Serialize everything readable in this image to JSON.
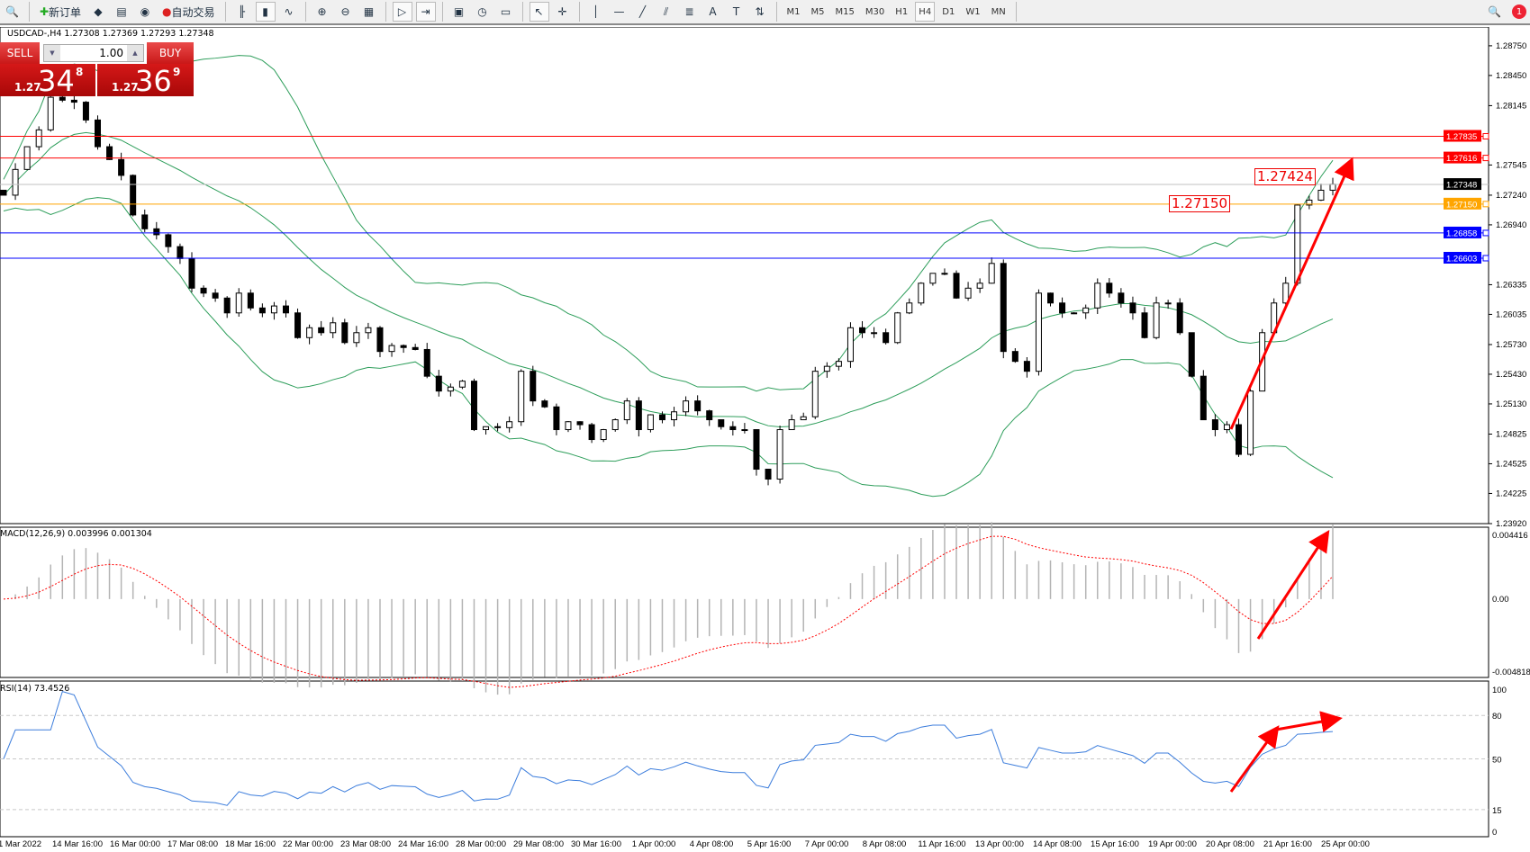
{
  "toolbar": {
    "new_order": "新订单",
    "auto_trading": "自动交易",
    "icons": [
      "search-icon",
      "new-order-icon",
      "history-icon",
      "market-watch-icon",
      "signals-icon",
      "auto-trading-icon",
      "bar-chart-icon",
      "candle-chart-icon",
      "line-chart-icon",
      "zoom-in-icon",
      "zoom-out-icon",
      "tile-windows-icon",
      "autoscroll-icon",
      "chart-shift-icon",
      "indicators-icon",
      "periods-icon",
      "templates-icon",
      "cursor-icon",
      "crosshair-icon",
      "vertical-line-icon",
      "horizontal-line-icon",
      "trendline-icon",
      "equidistant-channel-icon",
      "fibonacci-icon",
      "text-icon",
      "text-label-icon",
      "arrows-icon"
    ],
    "timeframes": [
      "M1",
      "M5",
      "M15",
      "M30",
      "H1",
      "H4",
      "D1",
      "W1",
      "MN"
    ],
    "active_timeframe": "H4",
    "notification_count": "1"
  },
  "symbol_info": "USDCAD-,H4  1.27308 1.27369 1.27293 1.27348",
  "one_click": {
    "sell": "SELL",
    "buy": "BUY",
    "lots": "1.00",
    "sell_price": {
      "small": "1.27",
      "big": "34",
      "pip": "8"
    },
    "buy_price": {
      "small": "1.27",
      "big": "36",
      "pip": "9"
    }
  },
  "price_labels": {
    "high_label": "1.27424",
    "mid_label": "1.27150"
  },
  "macd_label": "MACD(12,26,9) 0.003996 0.001304",
  "rsi_label": "RSI(14) 73.4526",
  "chart_data": {
    "type": "candlestick",
    "symbol": "USDCAD-",
    "timeframe": "H4",
    "price_axis": {
      "ticks": [
        "1.28750",
        "1.28450",
        "1.28145",
        "1.27545",
        "1.27240",
        "1.26940",
        "1.26335",
        "1.26035",
        "1.25730",
        "1.25430",
        "1.25130",
        "1.24825",
        "1.24525",
        "1.24225",
        "1.23920"
      ],
      "range": [
        1.2392,
        1.2894
      ]
    },
    "hlines": [
      {
        "price": "1.27835",
        "color": "#ff0000"
      },
      {
        "price": "1.27616",
        "color": "#ff0000"
      },
      {
        "price": "1.27348",
        "color": "#000000",
        "bid": true
      },
      {
        "price": "1.27150",
        "color": "#ffa500"
      },
      {
        "price": "1.26858",
        "color": "#0000ff"
      },
      {
        "price": "1.26603",
        "color": "#0000ff"
      }
    ],
    "close": [
      1.2724,
      1.275,
      1.2773,
      1.279,
      1.2823,
      1.282,
      1.2818,
      1.28,
      1.2773,
      1.276,
      1.2744,
      1.2704,
      1.269,
      1.2684,
      1.2672,
      1.266,
      1.263,
      1.2625,
      1.262,
      1.2605,
      1.2625,
      1.261,
      1.2605,
      1.2612,
      1.2605,
      1.258,
      1.259,
      1.2585,
      1.2595,
      1.2575,
      1.2585,
      1.259,
      1.2566,
      1.2572,
      1.257,
      1.2568,
      1.2541,
      1.2526,
      1.253,
      1.2536,
      1.2487,
      1.249,
      1.2489,
      1.2495,
      1.2546,
      1.2516,
      1.251,
      1.2487,
      1.2495,
      1.2492,
      1.2477,
      1.2487,
      1.2497,
      1.2516,
      1.2487,
      1.2502,
      1.2497,
      1.2505,
      1.2516,
      1.2506,
      1.2497,
      1.249,
      1.2487,
      1.2487,
      1.2447,
      1.2437,
      1.2487,
      1.2497,
      1.25,
      1.2546,
      1.2551,
      1.2556,
      1.259,
      1.2585,
      1.2585,
      1.2575,
      1.2605,
      1.2615,
      1.2635,
      1.2645,
      1.2645,
      1.262,
      1.263,
      1.2635,
      1.2655,
      1.2566,
      1.2556,
      1.2546,
      1.2625,
      1.2615,
      1.2605,
      1.2605,
      1.261,
      1.2635,
      1.2625,
      1.2615,
      1.2605,
      1.258,
      1.2615,
      1.2615,
      1.2585,
      1.2541,
      1.2497,
      1.2487,
      1.2492,
      1.2462,
      1.2526,
      1.2585,
      1.2615,
      1.2635,
      1.2714,
      1.2719,
      1.2729,
      1.2735
    ],
    "macd": {
      "params": "12,26,9",
      "axis": [
        "0.004416",
        "0.00",
        "-0.004818"
      ],
      "range": [
        -0.004818,
        0.004416
      ]
    },
    "rsi": {
      "period": 14,
      "levels": [
        80,
        50,
        15
      ],
      "axis": [
        "100",
        "80",
        "50",
        "15",
        "0"
      ],
      "range": [
        0,
        100
      ]
    },
    "time_labels": [
      "1 Mar 2022",
      "14 Mar 16:00",
      "16 Mar 00:00",
      "17 Mar 08:00",
      "18 Mar 16:00",
      "22 Mar 00:00",
      "23 Mar 08:00",
      "24 Mar 16:00",
      "28 Mar 00:00",
      "29 Mar 08:00",
      "30 Mar 16:00",
      "1 Apr 00:00",
      "4 Apr 08:00",
      "5 Apr 16:00",
      "7 Apr 00:00",
      "8 Apr 08:00",
      "11 Apr 16:00",
      "13 Apr 00:00",
      "14 Apr 08:00",
      "15 Apr 16:00",
      "19 Apr 00:00",
      "20 Apr 08:00",
      "21 Apr 16:00",
      "25 Apr 00:00"
    ],
    "colors": {
      "bands": "#2e9e5b",
      "macd_hist": "#b4b4b4",
      "macd_signal": "#ff0000",
      "rsi": "#3c7ddc",
      "arrow": "#ff0000"
    }
  }
}
